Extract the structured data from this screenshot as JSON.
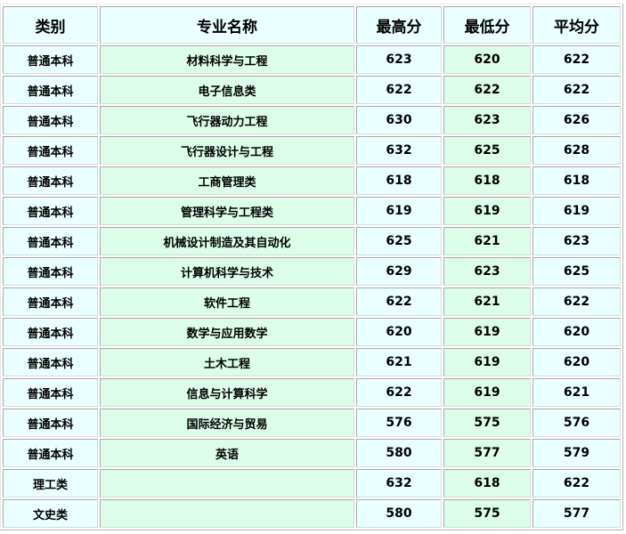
{
  "headers": [
    "类别",
    "专业名称",
    "最高分",
    "最低分",
    "平均分"
  ],
  "rows": [
    {
      "category": "普通本科",
      "major": "材料科学与工程",
      "max": "623",
      "min": "620",
      "avg": "622"
    },
    {
      "category": "普通本科",
      "major": "电子信息类",
      "max": "622",
      "min": "622",
      "avg": "622"
    },
    {
      "category": "普通本科",
      "major": "飞行器动力工程",
      "max": "630",
      "min": "623",
      "avg": "626"
    },
    {
      "category": "普通本科",
      "major": "飞行器设计与工程",
      "max": "632",
      "min": "625",
      "avg": "628"
    },
    {
      "category": "普通本科",
      "major": "工商管理类",
      "max": "618",
      "min": "618",
      "avg": "618"
    },
    {
      "category": "普通本科",
      "major": "管理科学与工程类",
      "max": "619",
      "min": "619",
      "avg": "619"
    },
    {
      "category": "普通本科",
      "major": "机械设计制造及其自动化",
      "max": "625",
      "min": "621",
      "avg": "623"
    },
    {
      "category": "普通本科",
      "major": "计算机科学与技术",
      "max": "629",
      "min": "623",
      "avg": "625"
    },
    {
      "category": "普通本科",
      "major": "软件工程",
      "max": "622",
      "min": "621",
      "avg": "622"
    },
    {
      "category": "普通本科",
      "major": "数学与应用数学",
      "max": "620",
      "min": "619",
      "avg": "620"
    },
    {
      "category": "普通本科",
      "major": "土木工程",
      "max": "621",
      "min": "619",
      "avg": "620"
    },
    {
      "category": "普通本科",
      "major": "信息与计算科学",
      "max": "622",
      "min": "619",
      "avg": "621"
    },
    {
      "category": "普通本科",
      "major": "国际经济与贸易",
      "max": "576",
      "min": "575",
      "avg": "576"
    },
    {
      "category": "普通本科",
      "major": "英语",
      "max": "580",
      "min": "577",
      "avg": "579"
    },
    {
      "category": "理工类",
      "major": "",
      "max": "632",
      "min": "618",
      "avg": "622"
    },
    {
      "category": "文史类",
      "major": "",
      "max": "580",
      "min": "575",
      "avg": "577"
    }
  ],
  "colors": {
    "cyan_cell": "#eaffff",
    "green_cell": "#dcfde9",
    "border": "#a8a8a8"
  }
}
